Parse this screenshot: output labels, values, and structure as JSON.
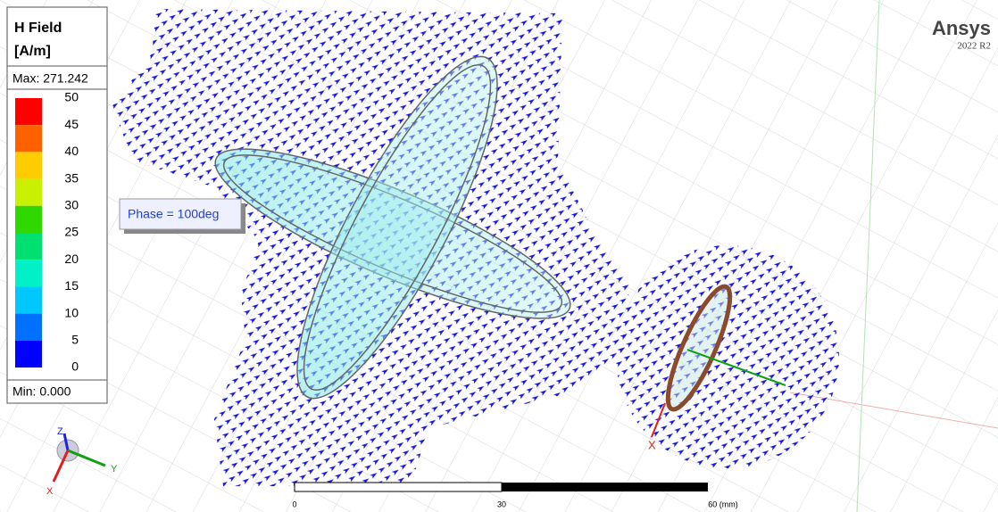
{
  "legend": {
    "title": "H Field",
    "unit": "[A/m]",
    "max": "Max: 271.242",
    "levels": [
      "50",
      "45",
      "40",
      "35",
      "30",
      "25",
      "20",
      "15",
      "10",
      "5",
      "0"
    ],
    "min": "Min: 0.000"
  },
  "phase_label": "Phase = 100deg",
  "brand": {
    "name": "Ansys",
    "version": "2022 R2"
  },
  "scale_bar": {
    "labels": [
      "0",
      "30",
      "60 (mm)"
    ]
  },
  "triad": {
    "z": "Z",
    "y": "Y",
    "x": "X"
  },
  "port_axis": {
    "x": "X"
  }
}
